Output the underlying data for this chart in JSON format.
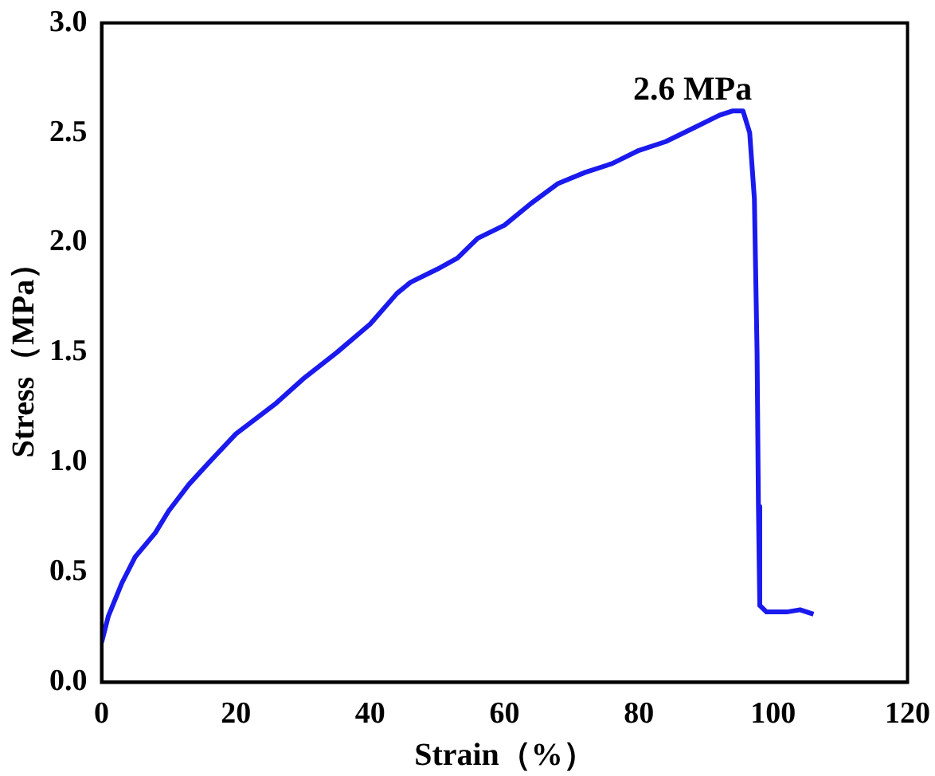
{
  "chart_data": {
    "type": "line",
    "xlabel": "Strain（%）",
    "ylabel": "Stress（MPa）",
    "xlim": [
      0,
      120
    ],
    "xticks": [
      0,
      20,
      40,
      60,
      80,
      100,
      120
    ],
    "ylim": [
      0,
      3.0
    ],
    "yticks": [
      {
        "value": 0,
        "label": "0.0"
      },
      {
        "value": 0.5,
        "label": "0.5"
      },
      {
        "value": 1,
        "label": "1.0"
      },
      {
        "value": 1.5,
        "label": "1.5"
      },
      {
        "value": 2,
        "label": "2.0"
      },
      {
        "value": 2.5,
        "label": "2.5"
      },
      {
        "value": 3,
        "label": "3.0"
      }
    ],
    "grid": false,
    "legend": false,
    "marker": "none",
    "line_style": "solid",
    "annotations": [
      {
        "text": "2.6 MPa",
        "x": 94,
        "y": 2.6
      }
    ],
    "series": [
      {
        "color": "#1a1aee",
        "x": [
          0,
          1,
          3,
          5,
          8,
          10,
          13,
          16,
          20,
          23,
          26,
          30,
          35,
          40,
          44,
          46,
          50,
          53,
          56,
          60,
          64,
          68,
          72,
          76,
          80,
          84,
          88,
          92,
          94,
          95.5,
          96.5,
          97.2,
          97.6,
          97.8,
          98,
          99,
          102,
          104,
          106
        ],
        "values": [
          0.18,
          0.3,
          0.45,
          0.57,
          0.68,
          0.78,
          0.9,
          1.0,
          1.13,
          1.2,
          1.27,
          1.38,
          1.5,
          1.63,
          1.77,
          1.82,
          1.88,
          1.93,
          2.02,
          2.08,
          2.18,
          2.27,
          2.32,
          2.36,
          2.42,
          2.46,
          2.52,
          2.58,
          2.6,
          2.6,
          2.5,
          2.2,
          1.5,
          0.8,
          0.35,
          0.32,
          0.32,
          0.33,
          0.31
        ]
      }
    ]
  }
}
